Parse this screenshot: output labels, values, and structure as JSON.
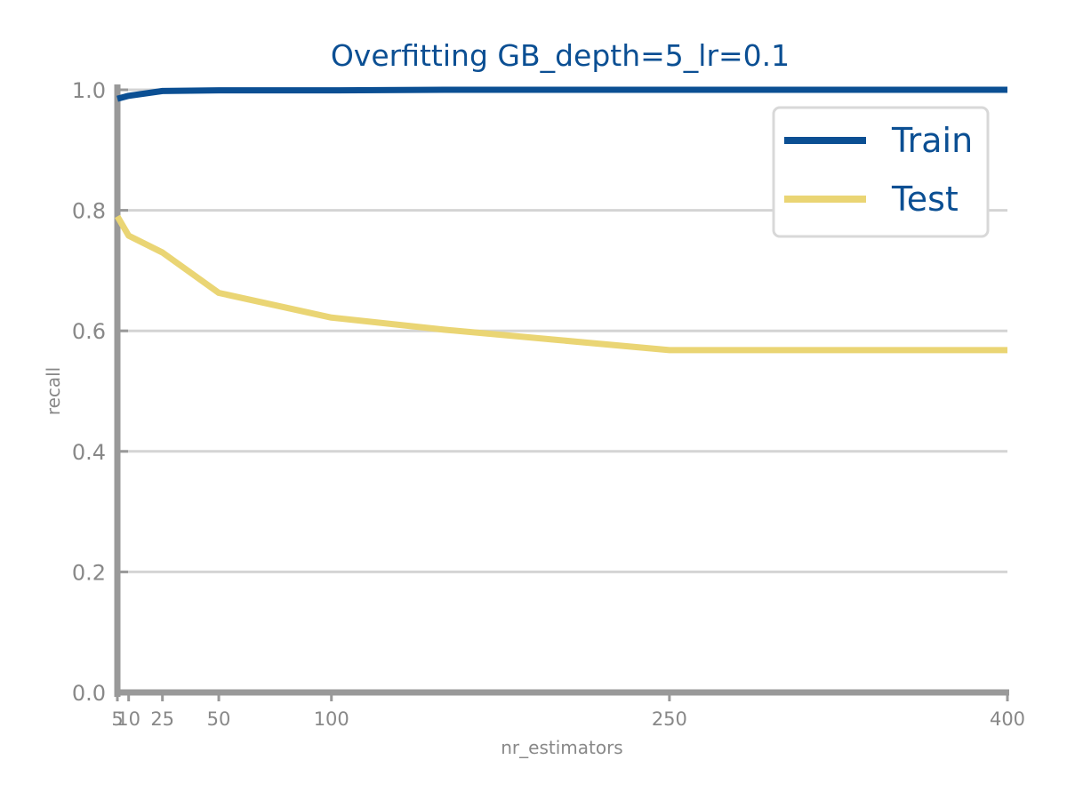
{
  "chart_data": {
    "type": "line",
    "title": "Overfitting GB_depth=5_lr=0.1",
    "xlabel": "nr_estimators",
    "ylabel": "recall",
    "x": [
      5,
      10,
      25,
      50,
      100,
      150,
      200,
      250,
      300,
      350,
      400
    ],
    "x_ticks": [
      5,
      10,
      25,
      50,
      100,
      250,
      400
    ],
    "x_tick_labels": [
      "5",
      "10",
      "25",
      "50",
      "100",
      "250",
      "400"
    ],
    "y_ticks": [
      0.0,
      0.2,
      0.4,
      0.6,
      0.8,
      1.0
    ],
    "y_tick_labels": [
      "0.0",
      "0.2",
      "0.4",
      "0.6",
      "0.8",
      "1.0"
    ],
    "xlim": [
      5,
      400
    ],
    "ylim": [
      0.0,
      1.0
    ],
    "grid": "horizontal",
    "legend_position": "top-right",
    "series": [
      {
        "name": "Train",
        "color": "#0b4f93",
        "values": [
          0.985,
          0.99,
          0.998,
          0.999,
          0.999,
          1.0,
          1.0,
          1.0,
          1.0,
          1.0,
          1.0
        ]
      },
      {
        "name": "Test",
        "color": "#ead574",
        "values": [
          0.79,
          0.758,
          0.73,
          0.663,
          0.622,
          0.602,
          0.585,
          0.568,
          0.568,
          0.568,
          0.568
        ]
      }
    ]
  },
  "style": {
    "axis_color": "#999999",
    "grid_color": "#d4d4d4",
    "legend_border_color": "#d8d8d8"
  }
}
